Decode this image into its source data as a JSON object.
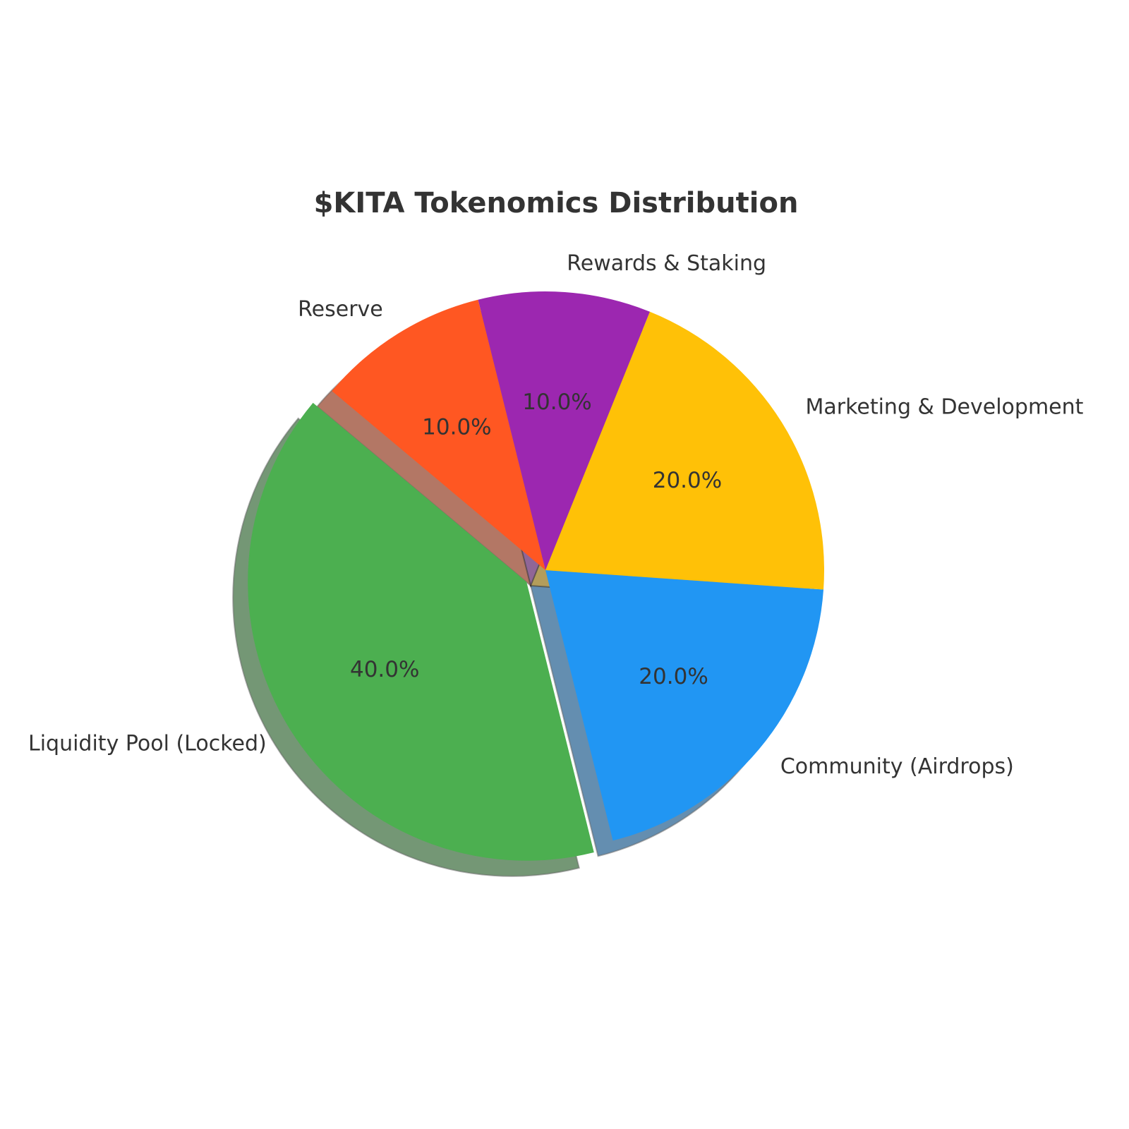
{
  "chart_data": {
    "type": "pie",
    "title": "$KITA Tokenomics Distribution",
    "categories": [
      "Liquidity Pool (Locked)",
      "Community (Airdrops)",
      "Marketing & Development",
      "Rewards & Staking",
      "Reserve"
    ],
    "values": [
      40,
      20,
      20,
      10,
      10
    ],
    "value_labels": [
      "40.0%",
      "20.0%",
      "20.0%",
      "10.0%",
      "10.0%"
    ],
    "colors": [
      "#4caf50",
      "#2196f3",
      "#ffc107",
      "#9c27b0",
      "#ff5722"
    ],
    "shadow": true
  }
}
